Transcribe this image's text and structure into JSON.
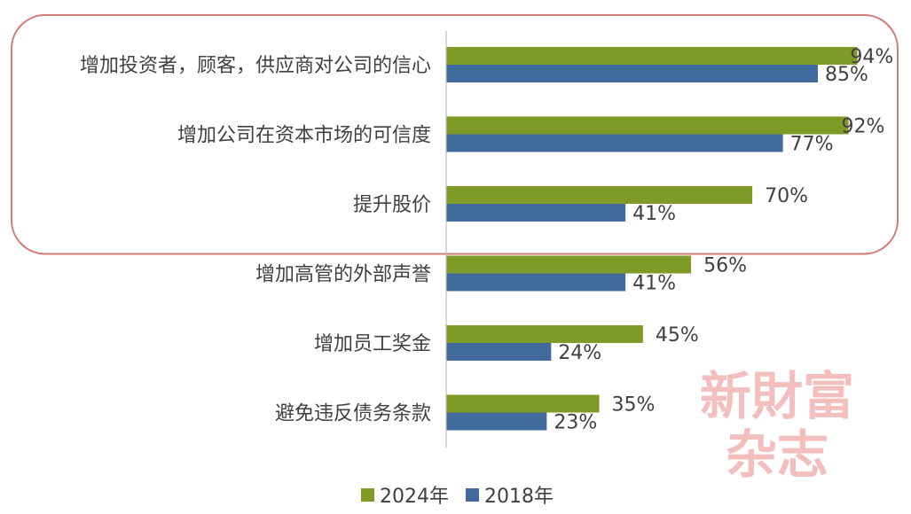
{
  "chart_data": {
    "type": "bar",
    "orientation": "horizontal",
    "categories": [
      "增加投资者，顾客，供应商对公司的信心",
      "增加公司在资本市场的可信度",
      "提升股价",
      "增加高管的外部声誉",
      "增加员工奖金",
      "避免违反债务条款"
    ],
    "series": [
      {
        "name": "2024年",
        "values": [
          94,
          92,
          70,
          56,
          45,
          35
        ],
        "labels": [
          "94%",
          "92%",
          "70%",
          "56%",
          "45%",
          "35%"
        ],
        "color": "#7f9a26"
      },
      {
        "name": "2018年",
        "values": [
          85,
          77,
          41,
          41,
          24,
          23
        ],
        "labels": [
          "85%",
          "77%",
          "41%",
          "41%",
          "24%",
          "23%"
        ],
        "color": "#426b9d"
      }
    ],
    "xlim": [
      0,
      100
    ],
    "grid": false,
    "legend_position": "bottom-center",
    "highlight": {
      "categories": [
        "增加投资者，顾客，供应商对公司的信心",
        "增加公司在资本市场的可信度",
        "提升股价"
      ],
      "color": "#d27b78"
    }
  },
  "watermark": {
    "line1": "新財富",
    "line2": "杂志"
  }
}
